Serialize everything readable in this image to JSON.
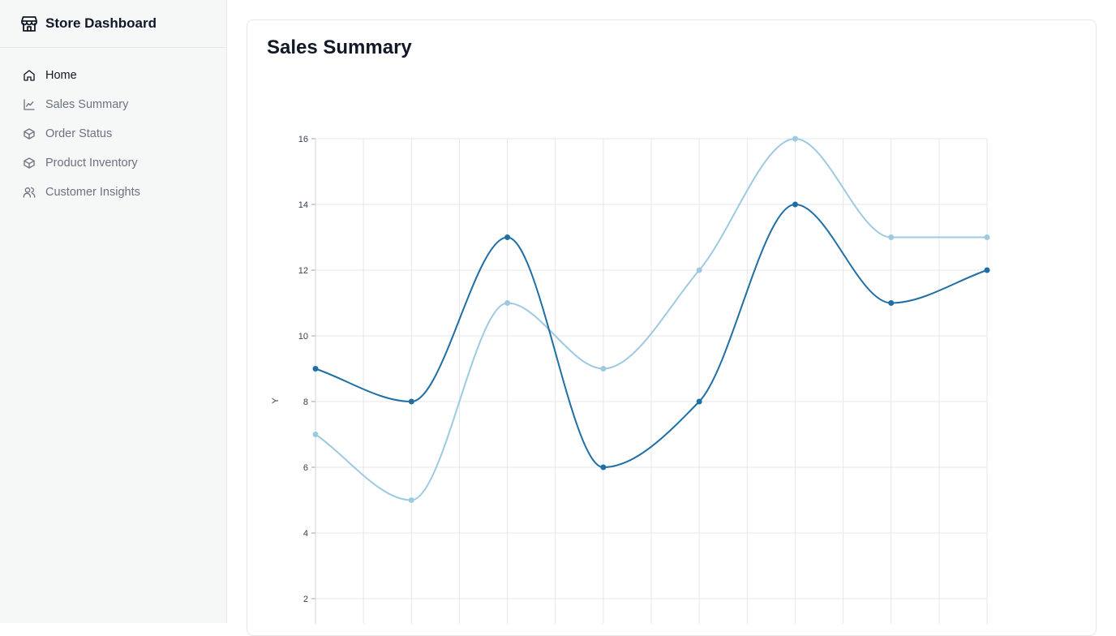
{
  "app": {
    "title": "Store Dashboard",
    "icon": "store-icon"
  },
  "sidebar": {
    "items": [
      {
        "label": "Home",
        "icon": "home-icon",
        "active": true
      },
      {
        "label": "Sales Summary",
        "icon": "line-chart-icon",
        "active": false
      },
      {
        "label": "Order Status",
        "icon": "box-icon",
        "active": false
      },
      {
        "label": "Product Inventory",
        "icon": "box-icon",
        "active": false
      },
      {
        "label": "Customer Insights",
        "icon": "users-icon",
        "active": false
      }
    ]
  },
  "main": {
    "title": "Sales Summary"
  },
  "colors": {
    "series_dark": "#1f6fa5",
    "series_light": "#9ecae1",
    "grid": "#e5e7eb"
  },
  "chart_data": {
    "type": "line",
    "ylabel": "Y",
    "ylim": [
      2,
      16
    ],
    "yticks": [
      2,
      4,
      6,
      8,
      10,
      12,
      14,
      16
    ],
    "x": [
      0,
      1,
      2,
      3,
      4,
      5,
      6,
      7
    ],
    "grid": true,
    "smooth": true,
    "series": [
      {
        "values": [
          9,
          8,
          13,
          6,
          8,
          14,
          11,
          12
        ],
        "color": "#1f6fa5"
      },
      {
        "values": [
          7,
          5,
          11,
          9,
          12,
          16,
          13,
          13
        ],
        "color": "#9ecae1"
      }
    ]
  }
}
